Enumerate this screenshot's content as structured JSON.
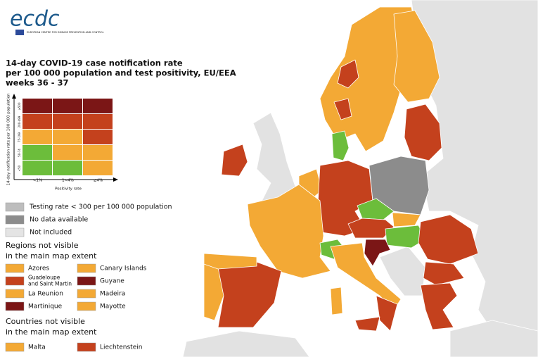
{
  "logo": {
    "text": "ecdc",
    "subtitle": "EUROPEAN CENTRE FOR DISEASE PREVENTION AND CONTROL"
  },
  "title": {
    "lines": [
      "14-day COVID-19 case notification rate",
      "per 100 000 population and test positivity, EU/EEA",
      "weeks 36 - 37"
    ]
  },
  "matrix": {
    "y_label": "14-day notification rate per 100 000 population",
    "row_labels": [
      "≥500",
      "200-499",
      "75-199",
      "50-74",
      "<50"
    ],
    "col_labels": [
      "<1%",
      "1<4%",
      "≥4%"
    ],
    "x_label": "Positivity rate",
    "cells": [
      [
        "#7b1616",
        "#7b1616",
        "#7b1616"
      ],
      [
        "#c4411d",
        "#c4411d",
        "#c4411d"
      ],
      [
        "#f3a935",
        "#f3a935",
        "#c4411d"
      ],
      [
        "#6cbd3b",
        "#f3a935",
        "#f3a935"
      ],
      [
        "#6cbd3b",
        "#6cbd3b",
        "#f3a935"
      ]
    ]
  },
  "legend": {
    "items": [
      {
        "label": "Testing rate < 300 per 100 000 population",
        "color": "#bdbdbd"
      },
      {
        "label": "No data available",
        "color": "#8c8c8c"
      },
      {
        "label": "Not included",
        "color": "#e4e4e4"
      }
    ]
  },
  "regions": {
    "heading": [
      "Regions not visible",
      "in the main map extent"
    ],
    "items": [
      {
        "label": [
          "Azores"
        ],
        "color": "#f3a935"
      },
      {
        "label": [
          "Canary Islands"
        ],
        "color": "#f3a935"
      },
      {
        "label": [
          "Guadeloupe",
          "and Saint Martin"
        ],
        "color": "#c4411d"
      },
      {
        "label": [
          "Guyane"
        ],
        "color": "#7b1616"
      },
      {
        "label": [
          "La Reunion"
        ],
        "color": "#f3a935"
      },
      {
        "label": [
          "Madeira"
        ],
        "color": "#f3a935"
      },
      {
        "label": [
          "Martinique"
        ],
        "color": "#7b1616"
      },
      {
        "label": [
          "Mayotte"
        ],
        "color": "#f3a935"
      }
    ]
  },
  "countries": {
    "heading": [
      "Countries not visible",
      "in the main map extent"
    ],
    "items": [
      {
        "label": [
          "Malta"
        ],
        "color": "#f3a935"
      },
      {
        "label": [
          "Liechtenstein"
        ],
        "color": "#c4411d"
      }
    ]
  }
}
